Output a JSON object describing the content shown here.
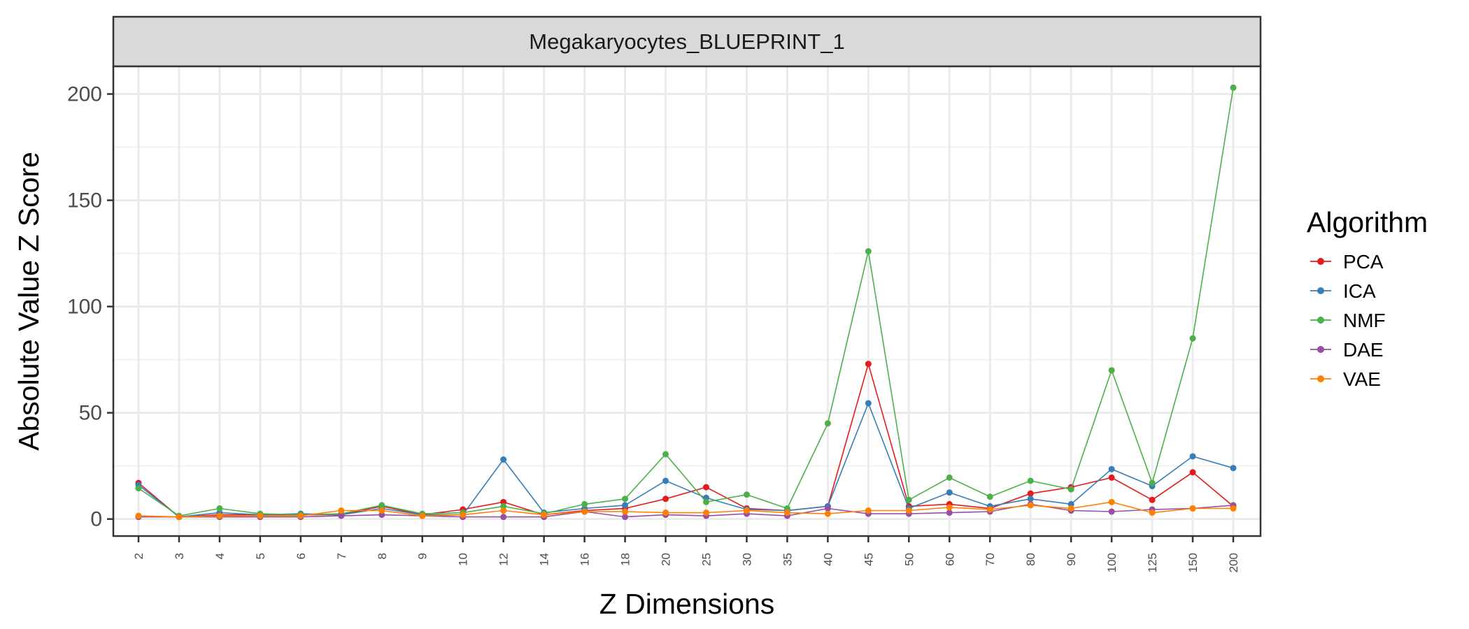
{
  "chart_data": {
    "type": "line",
    "title": "",
    "facet_label": "Megakaryocytes_BLUEPRINT_1",
    "xlabel": "Z Dimensions",
    "ylabel": "Absolute Value Z Score",
    "categories": [
      "2",
      "3",
      "4",
      "5",
      "6",
      "7",
      "8",
      "9",
      "10",
      "12",
      "14",
      "16",
      "18",
      "20",
      "25",
      "30",
      "35",
      "40",
      "45",
      "50",
      "60",
      "70",
      "80",
      "90",
      "100",
      "125",
      "150",
      "200"
    ],
    "ylim": [
      -8,
      213
    ],
    "yticks": [
      0,
      50,
      100,
      150,
      200
    ],
    "ytick_labels": [
      "0",
      "50",
      "100",
      "150",
      "200"
    ],
    "grid": true,
    "legend": {
      "title": "Algorithm",
      "position": "right"
    },
    "series": [
      {
        "name": "PCA",
        "color": "#E41A1C",
        "values": [
          17,
          1,
          2,
          2,
          2,
          2,
          6,
          2,
          4.5,
          8,
          2,
          4,
          5,
          9.5,
          15,
          5,
          4,
          6,
          73,
          6,
          7,
          5,
          12,
          15,
          19.5,
          9,
          22,
          6
        ]
      },
      {
        "name": "ICA",
        "color": "#377EB8",
        "values": [
          16,
          1,
          3,
          2,
          2.5,
          2,
          5,
          2,
          2,
          28,
          3,
          5,
          6.5,
          18,
          10,
          4.5,
          4,
          6,
          54.5,
          5,
          12.5,
          6,
          9.5,
          7,
          23.5,
          15.5,
          29.5,
          24
        ]
      },
      {
        "name": "NMF",
        "color": "#4DAF4A",
        "values": [
          14.5,
          1.5,
          5,
          2.5,
          2,
          2.5,
          6.5,
          2.5,
          3,
          6,
          2.5,
          7,
          9.5,
          30.5,
          8,
          11.5,
          5,
          45,
          126,
          9,
          19.5,
          10.5,
          18,
          14,
          70,
          17,
          85,
          203
        ]
      },
      {
        "name": "DAE",
        "color": "#984EA3",
        "values": [
          1,
          1,
          1,
          1,
          1,
          1.5,
          2,
          1.5,
          1,
          1,
          1,
          3.5,
          1,
          2,
          1.5,
          2.5,
          1.5,
          5,
          2.5,
          2.5,
          3,
          3.5,
          7,
          4,
          3.5,
          4.5,
          5,
          6.5
        ]
      },
      {
        "name": "VAE",
        "color": "#FF7F00",
        "values": [
          1.5,
          1,
          1.5,
          1.5,
          1.5,
          4,
          4,
          1.5,
          2,
          4,
          2,
          3.5,
          3.5,
          3,
          3,
          4,
          3,
          2.5,
          4,
          4,
          5.5,
          4.5,
          6.5,
          5,
          8,
          3,
          5,
          5
        ]
      }
    ]
  }
}
